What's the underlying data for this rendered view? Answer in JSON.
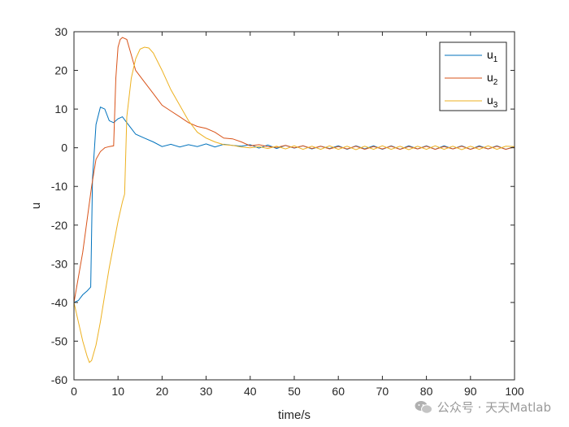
{
  "chart_data": {
    "type": "line",
    "title": "",
    "xlabel": "time/s",
    "ylabel": "u",
    "xlim": [
      0,
      100
    ],
    "ylim": [
      -60,
      30
    ],
    "xticks": [
      0,
      10,
      20,
      30,
      40,
      50,
      60,
      70,
      80,
      90,
      100
    ],
    "yticks": [
      -60,
      -50,
      -40,
      -30,
      -20,
      -10,
      0,
      10,
      20,
      30
    ],
    "grid": false,
    "legend": {
      "position": "top-right",
      "entries": [
        {
          "base": "u",
          "sub": "1"
        },
        {
          "base": "u",
          "sub": "2"
        },
        {
          "base": "u",
          "sub": "3"
        }
      ]
    },
    "series": [
      {
        "name": "u1",
        "color": "#0072BD",
        "x": [
          0,
          1,
          2,
          3,
          3.8,
          4.2,
          5,
          6,
          7,
          8,
          9,
          10,
          11,
          12,
          13,
          14,
          16,
          18,
          20,
          22,
          24,
          26,
          28,
          30,
          32,
          34,
          36,
          38,
          40,
          42,
          44,
          46,
          48,
          50,
          52,
          54,
          56,
          58,
          60,
          62,
          64,
          66,
          68,
          70,
          72,
          74,
          76,
          78,
          80,
          82,
          84,
          86,
          88,
          90,
          92,
          94,
          96,
          98,
          100
        ],
        "y": [
          -40,
          -39.5,
          -38,
          -37,
          -36,
          -8,
          6,
          10.5,
          10,
          7,
          6.5,
          7.5,
          8,
          6.5,
          5,
          3.5,
          2.5,
          1.5,
          0.3,
          0.9,
          0.2,
          0.8,
          0.3,
          1,
          0.2,
          0.9,
          0.6,
          0.4,
          0.8,
          -0.1,
          0.7,
          -0.2,
          0.6,
          -0.1,
          0.5,
          -0.3,
          0.4,
          -0.2,
          0.5,
          -0.4,
          0.5,
          -0.3,
          0.5,
          -0.4,
          0.5,
          -0.4,
          0.5,
          -0.3,
          0.5,
          -0.4,
          0.5,
          -0.3,
          0.5,
          -0.4,
          0.5,
          -0.3,
          0.5,
          -0.4,
          0.3
        ]
      },
      {
        "name": "u2",
        "color": "#D95319",
        "x": [
          0,
          2,
          4,
          5,
          6,
          7,
          8,
          9,
          9.5,
          10,
          10.5,
          11,
          12,
          13,
          14,
          16,
          18,
          20,
          22,
          24,
          26,
          28,
          30,
          32,
          34,
          36,
          38,
          40,
          42,
          44,
          46,
          48,
          50,
          52,
          54,
          56,
          58,
          60,
          62,
          64,
          66,
          68,
          70,
          72,
          74,
          76,
          78,
          80,
          82,
          84,
          86,
          88,
          90,
          92,
          94,
          96,
          98,
          100
        ],
        "y": [
          -40,
          -27,
          -10,
          -3,
          -1,
          0,
          0.3,
          0.5,
          18,
          26,
          28,
          28.5,
          28,
          24,
          20,
          17,
          14,
          11,
          9.5,
          8,
          6.5,
          5.5,
          5,
          4,
          2.5,
          2.3,
          1.5,
          0.5,
          0.8,
          0.3,
          0.1,
          0.6,
          0,
          0.5,
          -0.2,
          0.4,
          -0.3,
          0.3,
          -0.3,
          0.4,
          -0.4,
          0.3,
          -0.3,
          0.4,
          -0.4,
          0.3,
          -0.3,
          0.4,
          -0.4,
          0.3,
          -0.3,
          0.4,
          -0.4,
          0.3,
          -0.3,
          0.4,
          -0.4,
          0.2
        ]
      },
      {
        "name": "u3",
        "color": "#EDB120",
        "x": [
          0,
          1,
          2,
          3,
          3.5,
          4,
          5,
          6,
          7,
          8,
          9,
          10,
          11,
          11.5,
          12,
          13,
          14,
          15,
          16,
          17,
          18,
          20,
          22,
          24,
          26,
          28,
          30,
          32,
          34,
          36,
          38,
          40,
          42,
          44,
          46,
          48,
          50,
          52,
          54,
          56,
          58,
          60,
          62,
          64,
          66,
          68,
          70,
          72,
          74,
          76,
          78,
          80,
          82,
          84,
          86,
          88,
          90,
          92,
          94,
          96,
          98,
          100
        ],
        "y": [
          -40,
          -45,
          -50,
          -54,
          -55.5,
          -55,
          -51,
          -45,
          -38,
          -31,
          -25,
          -19,
          -14,
          -12,
          8,
          18,
          23,
          25.5,
          26,
          25.8,
          24.5,
          20,
          15,
          11,
          7,
          4,
          2.5,
          1.5,
          0.8,
          0.6,
          0.2,
          0,
          0.3,
          -0.2,
          0.4,
          -0.3,
          0.5,
          -0.4,
          0.4,
          -0.4,
          0.5,
          -0.4,
          0.4,
          -0.5,
          0.4,
          -0.4,
          0.5,
          -0.4,
          0.4,
          -0.5,
          0.4,
          -0.4,
          0.5,
          -0.4,
          0.4,
          -0.5,
          0.4,
          -0.4,
          0.5,
          -0.4,
          0.4,
          0.3
        ]
      }
    ]
  },
  "watermark": {
    "text": "公众号 · 天天Matlab",
    "icon": "wechat-icon",
    "color": "#9a9a9a"
  }
}
